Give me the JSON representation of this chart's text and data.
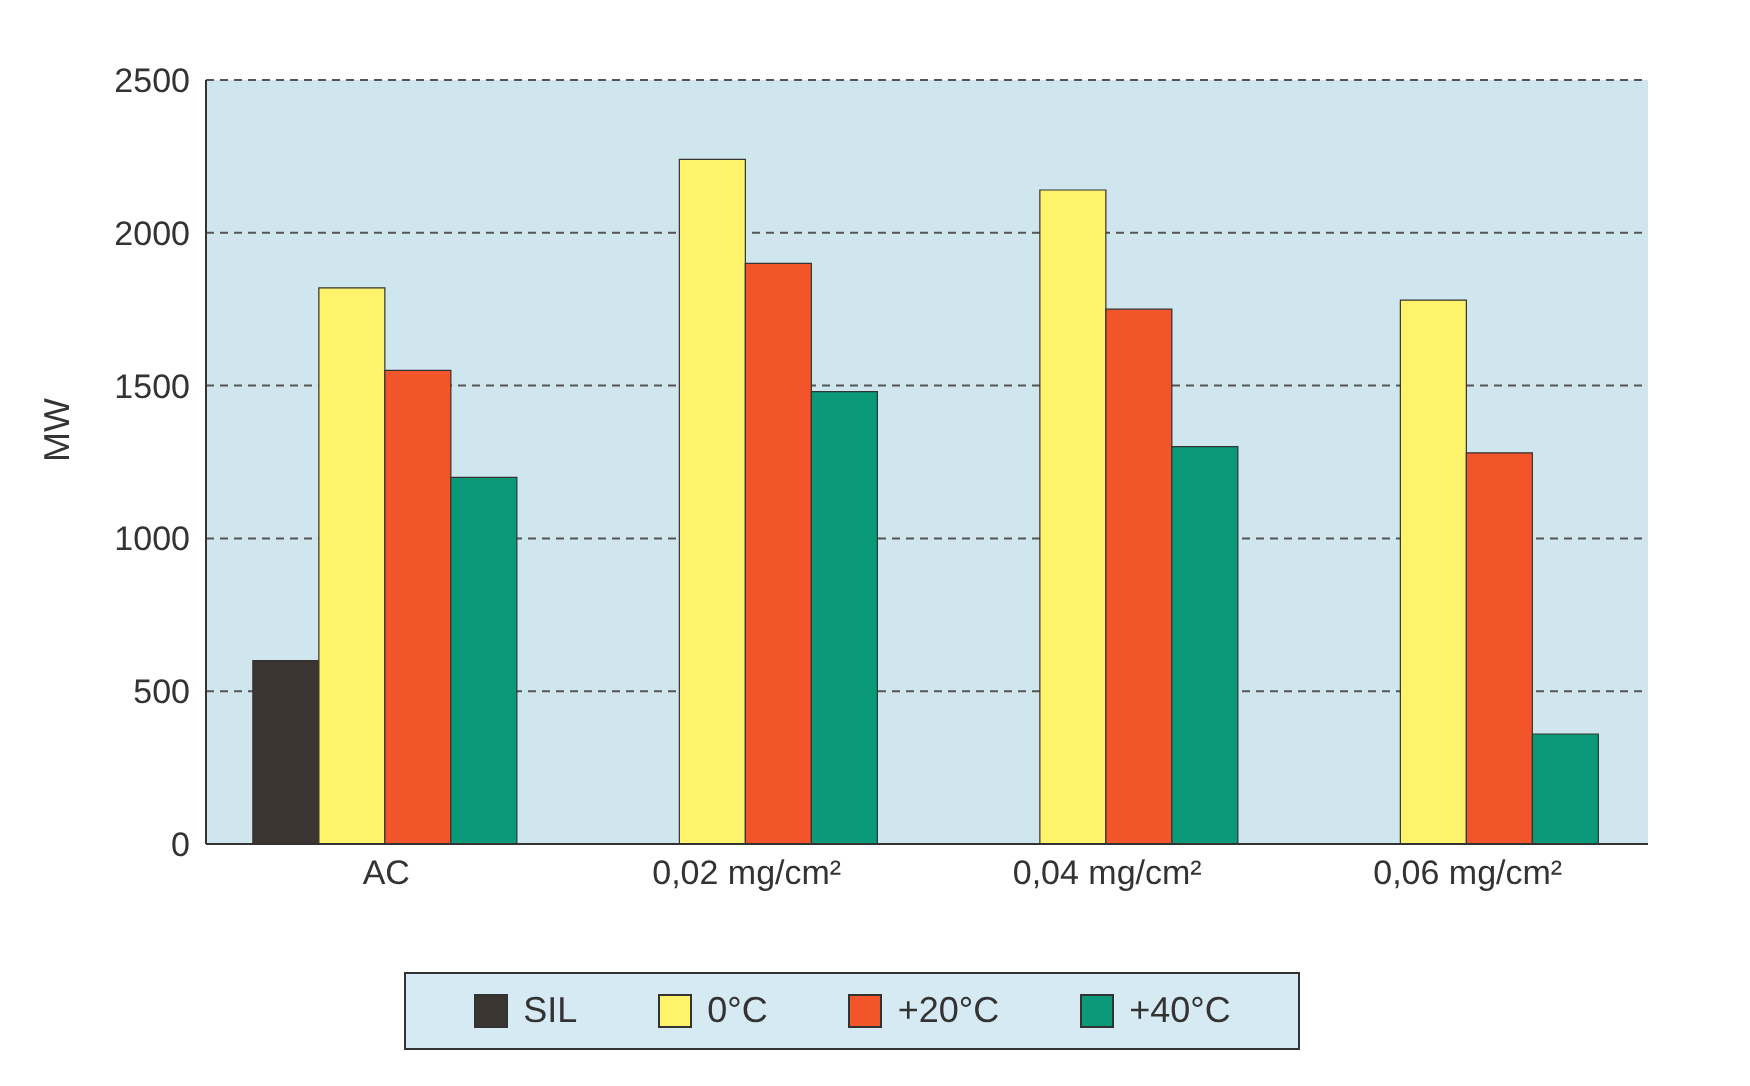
{
  "chart_data": {
    "type": "bar",
    "ylabel": "MW",
    "categories": [
      "AC",
      "0,02 mg/cm²",
      "0,04 mg/cm²",
      "0,06 mg/cm²"
    ],
    "series": [
      {
        "name": "SIL",
        "color": "#3a3530",
        "values": [
          600,
          null,
          null,
          null
        ]
      },
      {
        "name": "0°C",
        "color": "#fff36b",
        "values": [
          1820,
          2240,
          2140,
          1780
        ]
      },
      {
        "name": "+20°C",
        "color": "#f2552a",
        "values": [
          1550,
          1900,
          1750,
          1280
        ]
      },
      {
        "name": "+40°C",
        "color": "#0a9a7a",
        "values": [
          1200,
          1480,
          1300,
          360
        ]
      }
    ],
    "ylim": [
      0,
      2500
    ],
    "yticks": [
      0,
      500,
      1000,
      1500,
      2000,
      2500
    ],
    "grid": "y",
    "legend": "bottom"
  }
}
